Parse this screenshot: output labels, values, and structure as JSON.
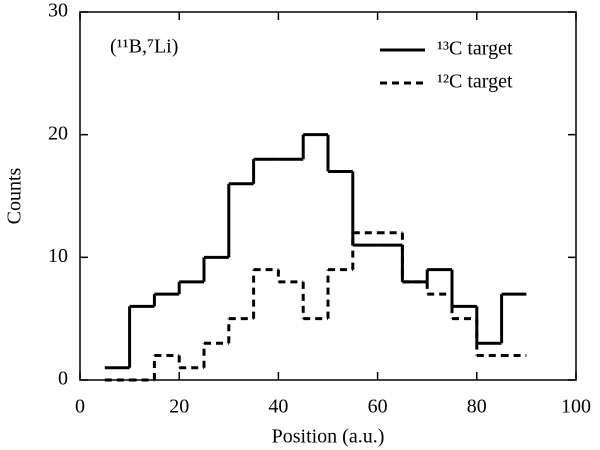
{
  "chart_data": {
    "type": "histogram",
    "xlabel": "Position (a.u.)",
    "ylabel": "Counts",
    "annotation": "(¹¹B,⁷Li)",
    "bins": [
      5,
      10,
      15,
      20,
      25,
      30,
      35,
      40,
      45,
      50,
      55,
      60,
      65,
      70,
      75,
      80,
      85,
      90
    ],
    "series": [
      {
        "name": "¹³C target",
        "color": "#000000",
        "linestyle": "solid",
        "values": [
          1,
          6,
          7,
          8,
          10,
          16,
          18,
          18,
          20,
          17,
          11,
          11,
          8,
          9,
          6,
          3,
          7
        ]
      },
      {
        "name": "¹²C target",
        "color": "#000000",
        "linestyle": "dashed",
        "values": [
          0,
          0,
          2,
          1,
          3,
          5,
          9,
          8,
          5,
          9,
          12,
          12,
          8,
          7,
          5,
          2,
          2
        ]
      }
    ],
    "xlim": [
      0,
      100
    ],
    "xticks": [
      0,
      20,
      40,
      60,
      80,
      100
    ],
    "ylim": [
      0,
      30
    ],
    "yticks": [
      0,
      10,
      20,
      30
    ],
    "legend": "upper right"
  }
}
